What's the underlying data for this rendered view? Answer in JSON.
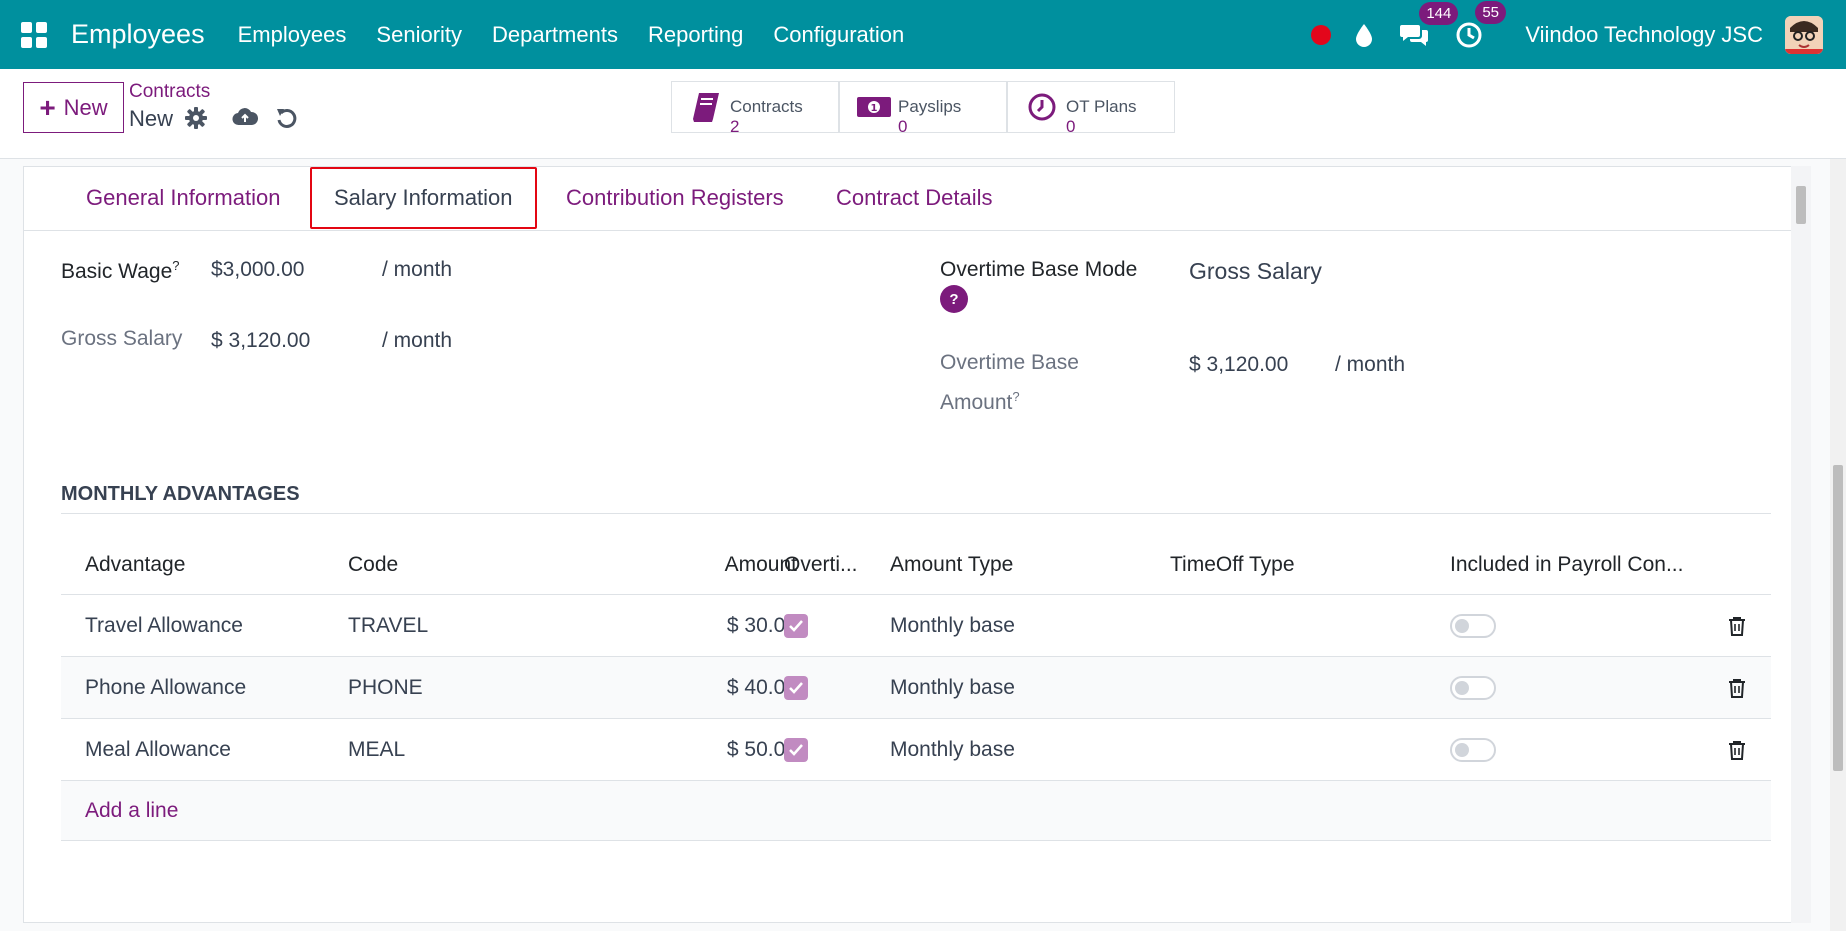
{
  "topbar": {
    "app_name": "Employees",
    "menu": [
      "Employees",
      "Seniority",
      "Departments",
      "Reporting",
      "Configuration"
    ],
    "messages_badge": "144",
    "activities_badge": "55",
    "company": "Viindoo Technology JSC"
  },
  "control": {
    "new_label": "New",
    "breadcrumb_parent": "Contracts",
    "breadcrumb_current": "New",
    "smart_buttons": [
      {
        "label": "Contracts",
        "value": "2"
      },
      {
        "label": "Payslips",
        "value": "0"
      },
      {
        "label": "OT Plans",
        "value": "0"
      }
    ]
  },
  "tabs": [
    "General Information",
    "Salary Information",
    "Contribution Registers",
    "Contract Details"
  ],
  "form": {
    "basic_wage_label": "Basic Wage",
    "basic_wage_value": "$3,000.00",
    "basic_wage_unit": "/ month",
    "gross_salary_label": "Gross Salary",
    "gross_salary_value": "$ 3,120.00",
    "gross_salary_unit": "/ month",
    "ot_mode_label": "Overtime Base Mode",
    "ot_mode_value": "Gross Salary",
    "ot_amount_label_1": "Overtime Base",
    "ot_amount_label_2": "Amount",
    "ot_amount_value": "$ 3,120.00",
    "ot_amount_unit": "/ month",
    "help_mark": "?"
  },
  "advantages": {
    "section_title": "MONTHLY ADVANTAGES",
    "columns": [
      "Advantage",
      "Code",
      "Amount",
      "Overti...",
      "Amount Type",
      "TimeOff Type",
      "Included in Payroll Con..."
    ],
    "rows": [
      {
        "advantage": "Travel Allowance",
        "code": "TRAVEL",
        "amount": "$ 30.00",
        "amount_type": "Monthly base",
        "timeoff_type": ""
      },
      {
        "advantage": "Phone Allowance",
        "code": "PHONE",
        "amount": "$ 40.00",
        "amount_type": "Monthly base",
        "timeoff_type": ""
      },
      {
        "advantage": "Meal Allowance",
        "code": "MEAL",
        "amount": "$ 50.00",
        "amount_type": "Monthly base",
        "timeoff_type": ""
      }
    ],
    "add_line": "Add a line"
  }
}
